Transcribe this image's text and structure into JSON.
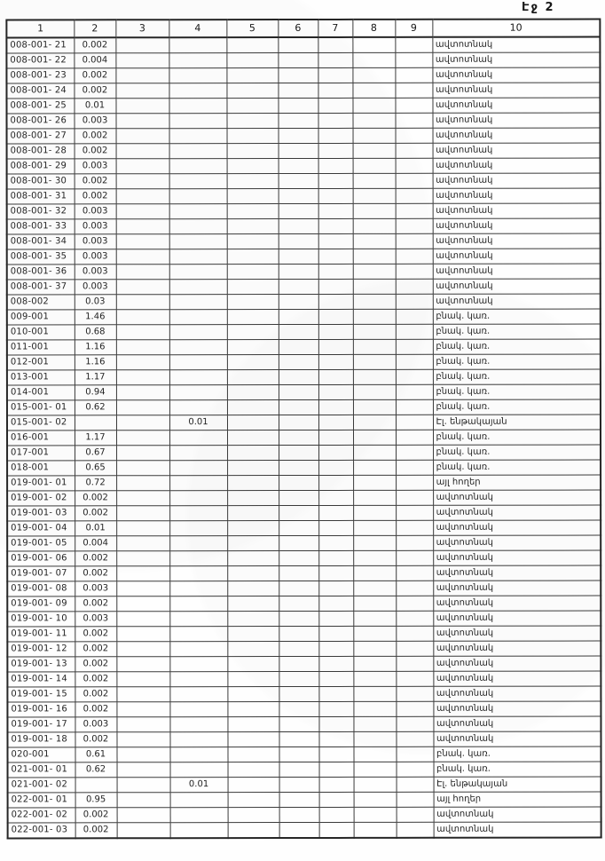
{
  "page": {
    "page_label": "Էջ 2"
  },
  "table": {
    "headers": [
      "1",
      "2",
      "3",
      "4",
      "5",
      "6",
      "7",
      "8",
      "9",
      "10"
    ],
    "rows": [
      [
        "008-001- 21",
        "0.002",
        "",
        "",
        "",
        "",
        "",
        "",
        "",
        "ավտոտնակ"
      ],
      [
        "008-001- 22",
        "0.004",
        "",
        "",
        "",
        "",
        "",
        "",
        "",
        "ավտոտնակ"
      ],
      [
        "008-001- 23",
        "0.002",
        "",
        "",
        "",
        "",
        "",
        "",
        "",
        "ավտոտնակ"
      ],
      [
        "008-001- 24",
        "0.002",
        "",
        "",
        "",
        "",
        "",
        "",
        "",
        "ավտոտնակ"
      ],
      [
        "008-001- 25",
        "0.01",
        "",
        "",
        "",
        "",
        "",
        "",
        "",
        "ավտոտնակ"
      ],
      [
        "008-001- 26",
        "0.003",
        "",
        "",
        "",
        "",
        "",
        "",
        "",
        "ավտոտնակ"
      ],
      [
        "008-001- 27",
        "0.002",
        "",
        "",
        "",
        "",
        "",
        "",
        "",
        "ավտոտնակ"
      ],
      [
        "008-001- 28",
        "0.002",
        "",
        "",
        "",
        "",
        "",
        "",
        "",
        "ավտոտնակ"
      ],
      [
        "008-001- 29",
        "0.003",
        "",
        "",
        "",
        "",
        "",
        "",
        "",
        "ավտոտնակ"
      ],
      [
        "008-001- 30",
        "0.002",
        "",
        "",
        "",
        "",
        "",
        "",
        "",
        "ավտոտնակ"
      ],
      [
        "008-001- 31",
        "0.002",
        "",
        "",
        "",
        "",
        "",
        "",
        "",
        "ավտոտնակ"
      ],
      [
        "008-001- 32",
        "0.003",
        "",
        "",
        "",
        "",
        "",
        "",
        "",
        "ավտոտնակ"
      ],
      [
        "008-001- 33",
        "0.003",
        "",
        "",
        "",
        "",
        "",
        "",
        "",
        "ավտոտնակ"
      ],
      [
        "008-001- 34",
        "0.003",
        "",
        "",
        "",
        "",
        "",
        "",
        "",
        "ավտոտնակ"
      ],
      [
        "008-001- 35",
        "0.003",
        "",
        "",
        "",
        "",
        "",
        "",
        "",
        "ավտոտնակ"
      ],
      [
        "008-001- 36",
        "0.003",
        "",
        "",
        "",
        "",
        "",
        "",
        "",
        "ավտոտնակ"
      ],
      [
        "008-001- 37",
        "0.003",
        "",
        "",
        "",
        "",
        "",
        "",
        "",
        "ավտոտնակ"
      ],
      [
        "008-002",
        "0.03",
        "",
        "",
        "",
        "",
        "",
        "",
        "",
        "ավտոտնակ"
      ],
      [
        "009-001",
        "1.46",
        "",
        "",
        "",
        "",
        "",
        "",
        "",
        "բնակ. կառ."
      ],
      [
        "010-001",
        "0.68",
        "",
        "",
        "",
        "",
        "",
        "",
        "",
        "բնակ. կառ."
      ],
      [
        "011-001",
        "1.16",
        "",
        "",
        "",
        "",
        "",
        "",
        "",
        "բնակ. կառ."
      ],
      [
        "012-001",
        "1.16",
        "",
        "",
        "",
        "",
        "",
        "",
        "",
        "բնակ. կառ."
      ],
      [
        "013-001",
        "1.17",
        "",
        "",
        "",
        "",
        "",
        "",
        "",
        "բնակ. կառ."
      ],
      [
        "014-001",
        "0.94",
        "",
        "",
        "",
        "",
        "",
        "",
        "",
        "բնակ. կառ."
      ],
      [
        "015-001- 01",
        "0.62",
        "",
        "",
        "",
        "",
        "",
        "",
        "",
        "բնակ. կառ."
      ],
      [
        "015-001- 02",
        "",
        "",
        "0.01",
        "",
        "",
        "",
        "",
        "",
        "Էլ. ենթակայան"
      ],
      [
        "016-001",
        "1.17",
        "",
        "",
        "",
        "",
        "",
        "",
        "",
        "բնակ. կառ."
      ],
      [
        "017-001",
        "0.67",
        "",
        "",
        "",
        "",
        "",
        "",
        "",
        "բնակ. կառ."
      ],
      [
        "018-001",
        "0.65",
        "",
        "",
        "",
        "",
        "",
        "",
        "",
        "բնակ. կառ."
      ],
      [
        "019-001- 01",
        "0.72",
        "",
        "",
        "",
        "",
        "",
        "",
        "",
        "այլ հողեր"
      ],
      [
        "019-001- 02",
        "0.002",
        "",
        "",
        "",
        "",
        "",
        "",
        "",
        "ավտոտնակ"
      ],
      [
        "019-001- 03",
        "0.002",
        "",
        "",
        "",
        "",
        "",
        "",
        "",
        "ավտոտնակ"
      ],
      [
        "019-001- 04",
        "0.01",
        "",
        "",
        "",
        "",
        "",
        "",
        "",
        "ավտոտնակ"
      ],
      [
        "019-001- 05",
        "0.004",
        "",
        "",
        "",
        "",
        "",
        "",
        "",
        "ավտոտնակ"
      ],
      [
        "019-001- 06",
        "0.002",
        "",
        "",
        "",
        "",
        "",
        "",
        "",
        "ավտոտնակ"
      ],
      [
        "019-001- 07",
        "0.002",
        "",
        "",
        "",
        "",
        "",
        "",
        "",
        "ավտոտնակ"
      ],
      [
        "019-001- 08",
        "0.003",
        "",
        "",
        "",
        "",
        "",
        "",
        "",
        "ավտոտնակ"
      ],
      [
        "019-001- 09",
        "0.002",
        "",
        "",
        "",
        "",
        "",
        "",
        "",
        "ավտոտնակ"
      ],
      [
        "019-001- 10",
        "0.003",
        "",
        "",
        "",
        "",
        "",
        "",
        "",
        "ավտոտնակ"
      ],
      [
        "019-001- 11",
        "0.002",
        "",
        "",
        "",
        "",
        "",
        "",
        "",
        "ավտոտնակ"
      ],
      [
        "019-001- 12",
        "0.002",
        "",
        "",
        "",
        "",
        "",
        "",
        "",
        "ավտոտնակ"
      ],
      [
        "019-001- 13",
        "0.002",
        "",
        "",
        "",
        "",
        "",
        "",
        "",
        "ավտոտնակ"
      ],
      [
        "019-001- 14",
        "0.002",
        "",
        "",
        "",
        "",
        "",
        "",
        "",
        "ավտոտնակ"
      ],
      [
        "019-001- 15",
        "0.002",
        "",
        "",
        "",
        "",
        "",
        "",
        "",
        "ավտոտնակ"
      ],
      [
        "019-001- 16",
        "0.002",
        "",
        "",
        "",
        "",
        "",
        "",
        "",
        "ավտոտնակ"
      ],
      [
        "019-001- 17",
        "0.003",
        "",
        "",
        "",
        "",
        "",
        "",
        "",
        "ավտոտնակ"
      ],
      [
        "019-001- 18",
        "0.002",
        "",
        "",
        "",
        "",
        "",
        "",
        "",
        "ավտոտնակ"
      ],
      [
        "020-001",
        "0.61",
        "",
        "",
        "",
        "",
        "",
        "",
        "",
        "բնակ. կառ."
      ],
      [
        "021-001- 01",
        "0.62",
        "",
        "",
        "",
        "",
        "",
        "",
        "",
        "բնակ. կառ."
      ],
      [
        "021-001- 02",
        "",
        "",
        "0.01",
        "",
        "",
        "",
        "",
        "",
        "Էլ. ենթակայան"
      ],
      [
        "022-001- 01",
        "0.95",
        "",
        "",
        "",
        "",
        "",
        "",
        "",
        "այլ հողեր"
      ],
      [
        "022-001- 02",
        "0.002",
        "",
        "",
        "",
        "",
        "",
        "",
        "",
        "ավտոտնակ"
      ],
      [
        "022-001- 03",
        "0.002",
        "",
        "",
        "",
        "",
        "",
        "",
        "",
        "ավտոտնակ"
      ]
    ]
  }
}
